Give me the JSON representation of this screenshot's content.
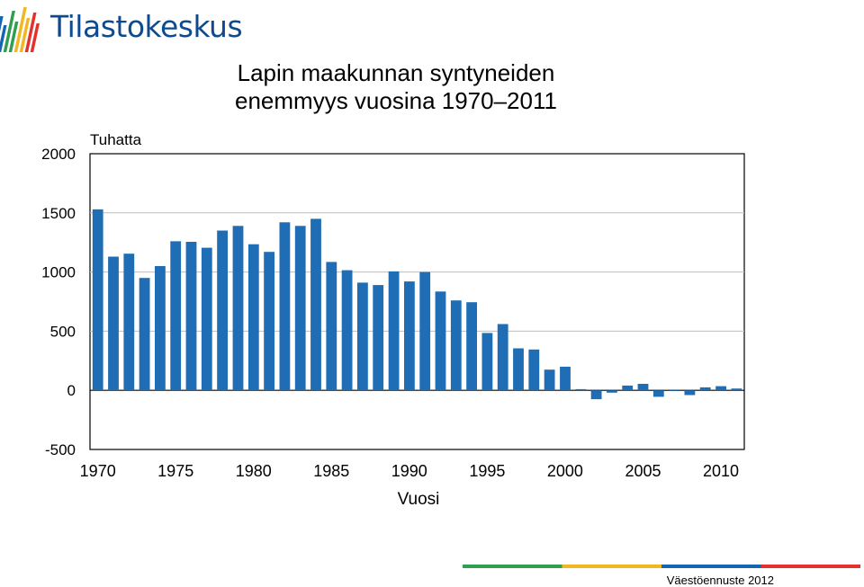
{
  "logo": {
    "name": "Tilastokeskus",
    "icon": "tilastokeskus-logo-icon",
    "bar_colors": [
      "#1565b3",
      "#2e9e4f",
      "#f2b620",
      "#e4312b"
    ]
  },
  "title_line1": "Lapin maakunnan syntyneiden",
  "title_line2": "enemmyys vuosina 1970–2011",
  "source": "Väestöennuste 2012",
  "footer_colors": [
    "#2e9e4f",
    "#f2b620",
    "#1565b3",
    "#e4312b"
  ],
  "chart_data": {
    "type": "bar",
    "ylabel": "Tuhatta",
    "xlabel": "Vuosi",
    "ylim": [
      -500,
      2000
    ],
    "yticks": [
      "2000",
      "1500",
      "1000",
      "500",
      "0",
      "-500"
    ],
    "ytick_values": [
      2000,
      1500,
      1000,
      500,
      0,
      -500
    ],
    "xticks": [
      "1970",
      "1975",
      "1980",
      "1985",
      "1990",
      "1995",
      "2000",
      "2005",
      "2010"
    ],
    "grid": true,
    "bar_color": "#1f6db5",
    "categories": [
      1970,
      1971,
      1972,
      1973,
      1974,
      1975,
      1976,
      1977,
      1978,
      1979,
      1980,
      1981,
      1982,
      1983,
      1984,
      1985,
      1986,
      1987,
      1988,
      1989,
      1990,
      1991,
      1992,
      1993,
      1994,
      1995,
      1996,
      1997,
      1998,
      1999,
      2000,
      2001,
      2002,
      2003,
      2004,
      2005,
      2006,
      2007,
      2008,
      2009,
      2010,
      2011
    ],
    "values": [
      1530,
      1130,
      1155,
      950,
      1050,
      1260,
      1255,
      1205,
      1350,
      1390,
      1235,
      1170,
      1420,
      1390,
      1450,
      1085,
      1015,
      910,
      890,
      1005,
      920,
      1000,
      835,
      760,
      745,
      485,
      560,
      355,
      345,
      175,
      200,
      10,
      -75,
      -20,
      40,
      55,
      -55,
      0,
      -40,
      25,
      35,
      15
    ]
  }
}
